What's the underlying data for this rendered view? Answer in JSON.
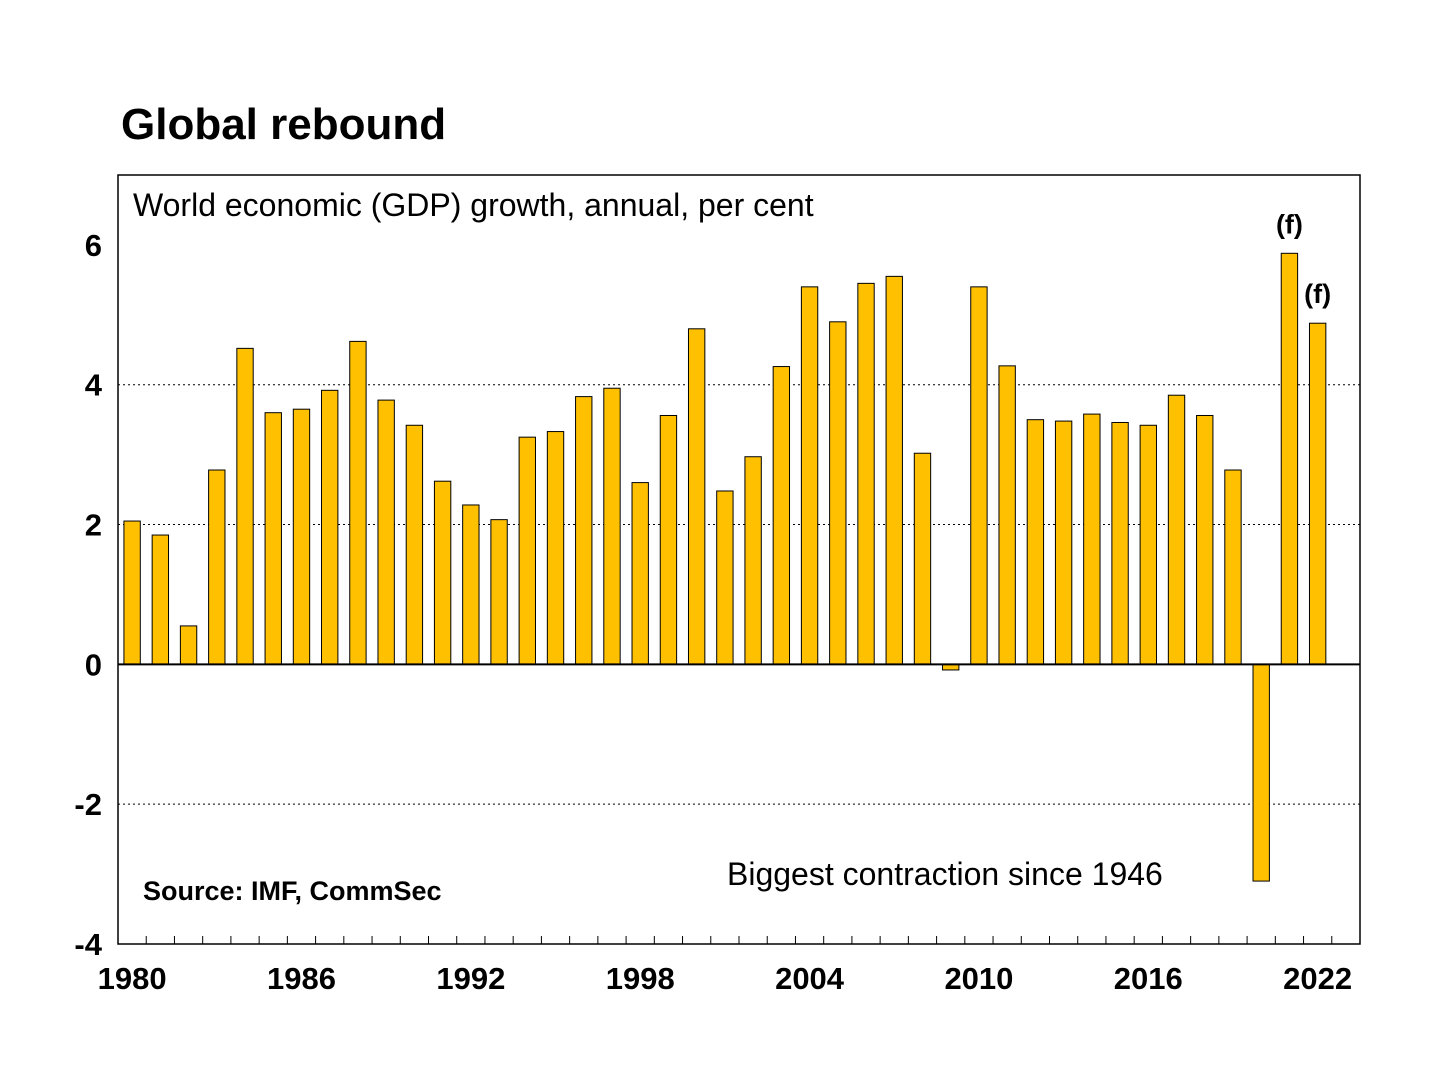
{
  "chart_data": {
    "type": "bar",
    "title": "Global rebound",
    "subtitle": "World economic (GDP) growth, annual, per cent",
    "source": "Source: IMF, CommSec",
    "annotation": "Biggest contraction since 1946",
    "forecast_label": "(f)",
    "xlabel": "",
    "ylabel": "",
    "ylim": [
      -4,
      7
    ],
    "yticks": [
      -4,
      -2,
      0,
      2,
      4,
      6
    ],
    "gridlines_at": [
      -2,
      2,
      4
    ],
    "x_tick_labels": [
      "1980",
      "1986",
      "1992",
      "1998",
      "2004",
      "2010",
      "2016",
      "2022"
    ],
    "bar_color": "#FFC000",
    "bar_edge_color": "#000000",
    "forecast_years": [
      2021,
      2022
    ],
    "categories": [
      1980,
      1981,
      1982,
      1983,
      1984,
      1985,
      1986,
      1987,
      1988,
      1989,
      1990,
      1991,
      1992,
      1993,
      1994,
      1995,
      1996,
      1997,
      1998,
      1999,
      2000,
      2001,
      2002,
      2003,
      2004,
      2005,
      2006,
      2007,
      2008,
      2009,
      2010,
      2011,
      2012,
      2013,
      2014,
      2015,
      2016,
      2017,
      2018,
      2019,
      2020,
      2021,
      2022
    ],
    "values": [
      2.05,
      1.85,
      0.55,
      2.78,
      4.52,
      3.6,
      3.65,
      3.92,
      4.62,
      3.78,
      3.42,
      2.62,
      2.28,
      2.07,
      3.25,
      3.33,
      3.83,
      3.95,
      2.6,
      3.56,
      4.8,
      2.48,
      2.97,
      4.26,
      5.4,
      4.9,
      5.45,
      5.55,
      3.02,
      -0.08,
      5.4,
      4.27,
      3.5,
      3.48,
      3.58,
      3.46,
      3.42,
      3.85,
      3.56,
      2.78,
      -3.1,
      5.88,
      4.88
    ]
  }
}
